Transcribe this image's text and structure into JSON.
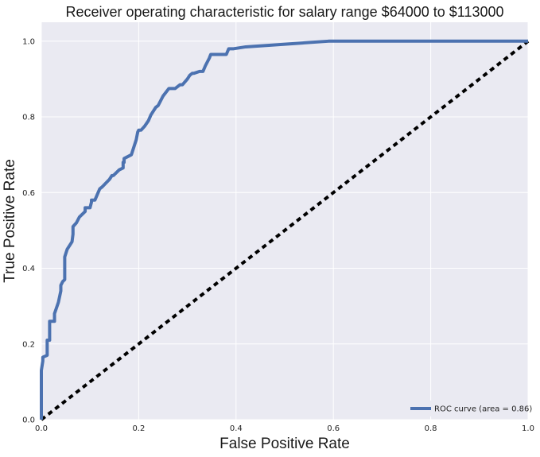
{
  "chart_data": {
    "type": "line",
    "title": "Receiver operating characteristic for salary range $64000 to $113000",
    "xlabel": "False Positive Rate",
    "ylabel": "True Positive Rate",
    "xlim": [
      0.0,
      1.0
    ],
    "ylim": [
      0.0,
      1.05
    ],
    "xticks": [
      "0.0",
      "0.2",
      "0.4",
      "0.6",
      "0.8",
      "1.0"
    ],
    "yticks": [
      "0.0",
      "0.2",
      "0.4",
      "0.6",
      "0.8",
      "1.0"
    ],
    "grid": true,
    "legend_position": "lower-right",
    "colors": {
      "background": "#eaeaf2",
      "grid": "#ffffff",
      "roc": "#4c72b0",
      "diagonal": "#000000"
    },
    "series": [
      {
        "name": "ROC curve (area = 0.86)",
        "style": "solid",
        "x": [
          0.0,
          0.0,
          0.003,
          0.003,
          0.012,
          0.012,
          0.017,
          0.017,
          0.027,
          0.027,
          0.035,
          0.04,
          0.04,
          0.044,
          0.048,
          0.048,
          0.053,
          0.058,
          0.063,
          0.065,
          0.065,
          0.072,
          0.078,
          0.09,
          0.09,
          0.1,
          0.103,
          0.103,
          0.106,
          0.11,
          0.12,
          0.125,
          0.14,
          0.145,
          0.148,
          0.16,
          0.168,
          0.168,
          0.17,
          0.17,
          0.185,
          0.19,
          0.195,
          0.198,
          0.2,
          0.205,
          0.212,
          0.22,
          0.225,
          0.235,
          0.24,
          0.25,
          0.256,
          0.262,
          0.275,
          0.285,
          0.29,
          0.3,
          0.305,
          0.31,
          0.313,
          0.325,
          0.33,
          0.332,
          0.337,
          0.345,
          0.348,
          0.38,
          0.385,
          0.395,
          0.42,
          0.59,
          0.595,
          0.625,
          0.69,
          0.7,
          0.7,
          0.8,
          0.82,
          1.0
        ],
        "y": [
          0.0,
          0.13,
          0.155,
          0.165,
          0.17,
          0.21,
          0.21,
          0.26,
          0.26,
          0.28,
          0.31,
          0.34,
          0.355,
          0.365,
          0.37,
          0.43,
          0.45,
          0.46,
          0.47,
          0.49,
          0.51,
          0.52,
          0.535,
          0.55,
          0.56,
          0.56,
          0.575,
          0.58,
          0.58,
          0.58,
          0.61,
          0.615,
          0.635,
          0.645,
          0.645,
          0.66,
          0.665,
          0.68,
          0.68,
          0.69,
          0.7,
          0.72,
          0.74,
          0.76,
          0.765,
          0.765,
          0.775,
          0.79,
          0.805,
          0.825,
          0.83,
          0.855,
          0.865,
          0.875,
          0.875,
          0.885,
          0.885,
          0.9,
          0.91,
          0.915,
          0.915,
          0.92,
          0.92,
          0.92,
          0.935,
          0.955,
          0.965,
          0.965,
          0.98,
          0.98,
          0.985,
          1.0,
          1.0,
          1.0,
          1.0,
          1.0,
          1.0,
          1.0,
          1.0,
          1.0
        ]
      },
      {
        "name": "",
        "style": "dashed",
        "x": [
          0.0,
          1.0
        ],
        "y": [
          0.0,
          1.0
        ]
      }
    ]
  }
}
